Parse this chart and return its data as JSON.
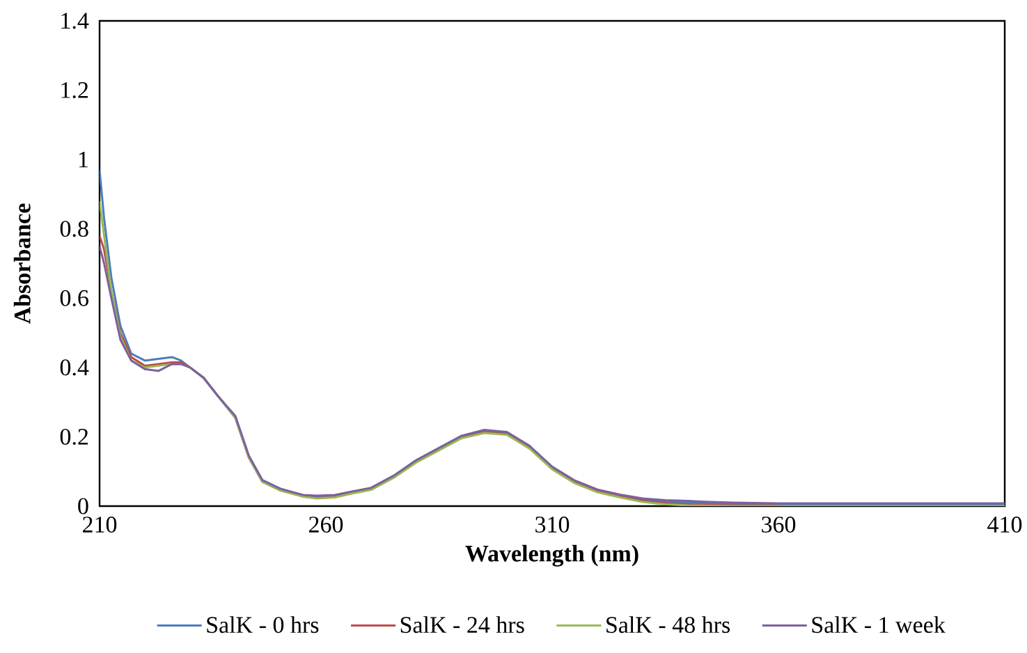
{
  "chart_data": {
    "type": "line",
    "xlabel": "Wavelength (nm)",
    "ylabel": "Absorbance",
    "x": [
      210,
      211,
      212.6,
      214.6,
      217,
      220,
      223,
      226,
      228,
      230,
      233,
      236,
      240,
      243,
      246,
      250,
      255,
      258,
      262,
      266,
      270,
      275,
      280,
      285,
      290,
      295,
      300,
      305,
      310,
      315,
      320,
      325,
      330,
      335,
      340,
      345,
      350,
      360,
      380,
      410
    ],
    "xlim": [
      210,
      410
    ],
    "xticks": [
      210,
      260,
      310,
      360,
      410
    ],
    "ylim": [
      0,
      1.4
    ],
    "yticks": [
      0,
      0.2,
      0.4,
      0.6,
      0.8,
      1,
      1.2,
      1.4
    ],
    "legend": "bottom",
    "grid": false,
    "series": [
      {
        "name": "SalK - 0 hrs",
        "color": "#4a7ebb",
        "values": [
          0.97,
          0.83,
          0.66,
          0.52,
          0.44,
          0.42,
          0.425,
          0.43,
          0.42,
          0.4,
          0.37,
          0.32,
          0.255,
          0.14,
          0.07,
          0.05,
          0.03,
          0.025,
          0.028,
          0.04,
          0.05,
          0.085,
          0.13,
          0.165,
          0.2,
          0.215,
          0.21,
          0.17,
          0.11,
          0.07,
          0.045,
          0.03,
          0.018,
          0.012,
          0.01,
          0.008,
          0.005,
          0.005,
          0.004,
          0.004
        ]
      },
      {
        "name": "SalK - 24 hrs",
        "color": "#be4b48",
        "values": [
          0.78,
          0.74,
          0.62,
          0.5,
          0.43,
          0.405,
          0.41,
          0.415,
          0.415,
          0.4,
          0.37,
          0.32,
          0.255,
          0.14,
          0.07,
          0.045,
          0.028,
          0.023,
          0.026,
          0.038,
          0.048,
          0.083,
          0.128,
          0.163,
          0.198,
          0.213,
          0.208,
          0.168,
          0.108,
          0.068,
          0.043,
          0.028,
          0.015,
          0.008,
          0.005,
          0.003,
          0.002,
          0.002,
          null,
          null
        ]
      },
      {
        "name": "SalK - 48 hrs",
        "color": "#98b954",
        "values": [
          0.88,
          0.78,
          0.62,
          0.49,
          0.42,
          0.4,
          0.405,
          0.41,
          0.41,
          0.4,
          0.37,
          0.32,
          0.255,
          0.14,
          0.07,
          0.045,
          0.027,
          0.022,
          0.025,
          0.037,
          0.047,
          0.082,
          0.126,
          0.161,
          0.196,
          0.211,
          0.206,
          0.166,
          0.106,
          0.066,
          0.04,
          0.025,
          0.012,
          0.005,
          0.002,
          0.001,
          0.0,
          0.0,
          0.0,
          0.0
        ]
      },
      {
        "name": "SalK - 1 week",
        "color": "#7d60a0",
        "values": [
          0.75,
          0.7,
          0.6,
          0.48,
          0.42,
          0.395,
          0.39,
          0.41,
          0.41,
          0.4,
          0.37,
          0.32,
          0.26,
          0.145,
          0.075,
          0.05,
          0.032,
          0.03,
          0.032,
          0.043,
          0.053,
          0.088,
          0.133,
          0.168,
          0.203,
          0.22,
          0.214,
          0.174,
          0.114,
          0.074,
          0.048,
          0.033,
          0.022,
          0.017,
          0.015,
          0.012,
          0.01,
          0.008,
          0.008,
          0.008
        ]
      }
    ]
  }
}
